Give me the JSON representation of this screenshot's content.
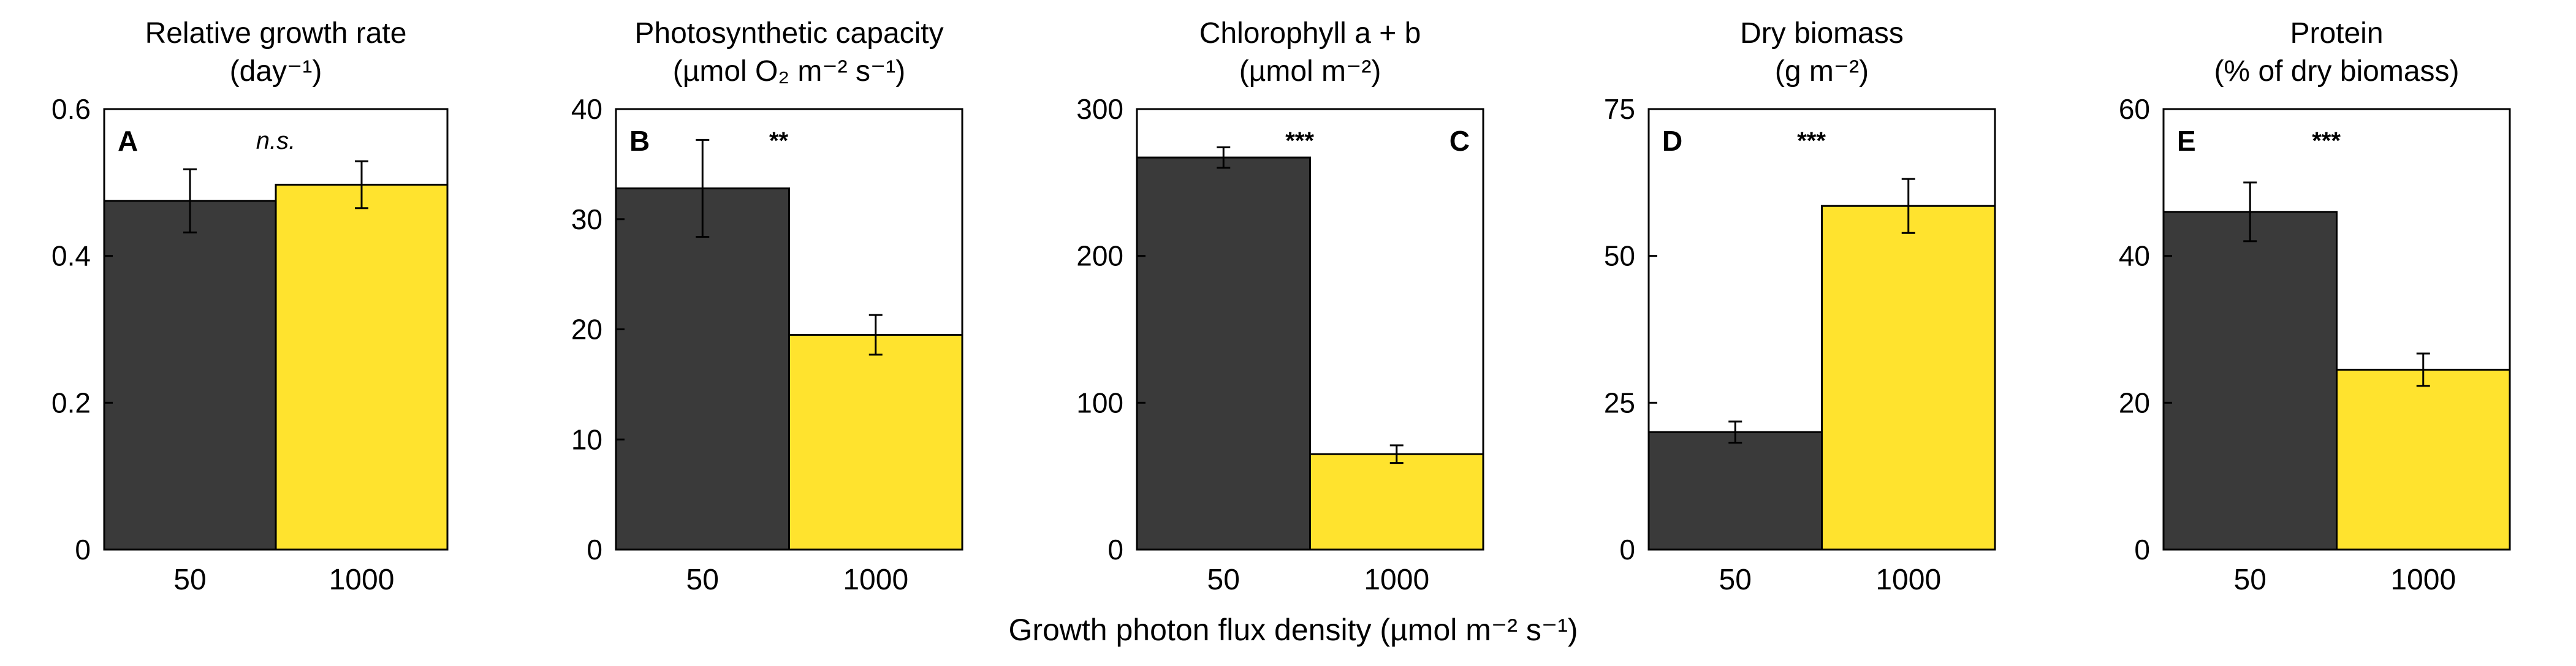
{
  "figure": {
    "xlabel": "Growth photon flux density (µmol m⁻² s⁻¹)",
    "colors": {
      "low": "#3a3a3a",
      "high": "#ffe32e"
    }
  },
  "chart_data": [
    {
      "type": "bar",
      "panel": "A",
      "title_lines": [
        "Relative growth rate",
        "(day⁻¹)"
      ],
      "categories": [
        "50",
        "1000"
      ],
      "values": [
        0.475,
        0.497
      ],
      "errors": [
        0.043,
        0.032
      ],
      "ylim": [
        0,
        0.6
      ],
      "yticks": [
        0,
        0.2,
        0.4,
        0.6
      ],
      "ytick_labels": [
        "0",
        "0.2",
        "0.4",
        "0.6"
      ],
      "significance": "n.s.",
      "xlabel": "Growth photon flux density (µmol m⁻² s⁻¹)"
    },
    {
      "type": "bar",
      "panel": "B",
      "title_lines": [
        "Photosynthetic capacity",
        "(µmol O₂ m⁻² s⁻¹)"
      ],
      "categories": [
        "50",
        "1000"
      ],
      "values": [
        32.8,
        19.5
      ],
      "errors": [
        4.4,
        1.8
      ],
      "ylim": [
        0,
        40
      ],
      "yticks": [
        0,
        10,
        20,
        30,
        40
      ],
      "ytick_labels": [
        "0",
        "10",
        "20",
        "30",
        "40"
      ],
      "significance": "**",
      "xlabel": "Growth photon flux density (µmol m⁻² s⁻¹)"
    },
    {
      "type": "bar",
      "panel": "C",
      "title_lines": [
        "Chlorophyll a + b",
        "(µmol m⁻²)"
      ],
      "categories": [
        "50",
        "1000"
      ],
      "values": [
        267,
        65
      ],
      "errors": [
        7,
        6
      ],
      "ylim": [
        0,
        300
      ],
      "yticks": [
        0,
        100,
        200,
        300
      ],
      "ytick_labels": [
        "0",
        "100",
        "200",
        "300"
      ],
      "significance": "***",
      "xlabel": "Growth photon flux density (µmol m⁻² s⁻¹)"
    },
    {
      "type": "bar",
      "panel": "D",
      "title_lines": [
        "Dry biomass",
        "(g m⁻²)"
      ],
      "categories": [
        "50",
        "1000"
      ],
      "values": [
        20,
        58.5
      ],
      "errors": [
        1.8,
        4.6
      ],
      "ylim": [
        0,
        75
      ],
      "yticks": [
        0,
        25,
        50,
        75
      ],
      "ytick_labels": [
        "0",
        "25",
        "50",
        "75"
      ],
      "significance": "***",
      "xlabel": "Growth photon flux density (µmol m⁻² s⁻¹)"
    },
    {
      "type": "bar",
      "panel": "E",
      "title_lines": [
        "Protein",
        "(% of dry biomass)"
      ],
      "categories": [
        "50",
        "1000"
      ],
      "values": [
        46,
        24.5
      ],
      "errors": [
        4,
        2.2
      ],
      "ylim": [
        0,
        60
      ],
      "yticks": [
        0,
        20,
        40,
        60
      ],
      "ytick_labels": [
        "0",
        "20",
        "40",
        "60"
      ],
      "significance": "***",
      "xlabel": "Growth photon flux density (µmol m⁻² s⁻¹)"
    }
  ]
}
